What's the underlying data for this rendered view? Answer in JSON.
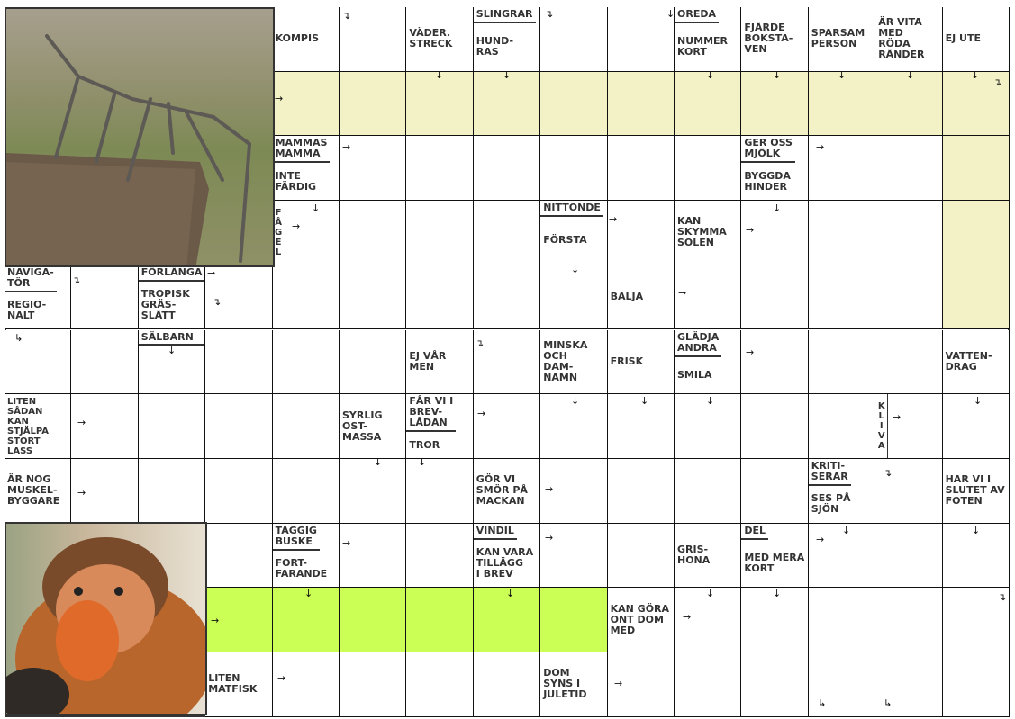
{
  "colors": {
    "highlight_yellow": "#f2f2c6",
    "highlight_green": "#ccff55",
    "grid": "#111111",
    "text": "#333333"
  },
  "photos": {
    "top": "stick-insect-photo",
    "bottom": "proboscis-monkey-photo"
  },
  "clues": [
    [
      "KOMPIS"
    ],
    [
      "VÄDER.\nSTRECK"
    ],
    [
      "SLINGRAR",
      "HUND-\nRAS"
    ],
    [
      "OREDA",
      "NUMMER\nKORT"
    ],
    [
      "FJÄRDE\nBOKSTA-\nVEN"
    ],
    [
      "SPARSAM\nPERSON"
    ],
    [
      "ÄR VITA\nMED\nRÖDA\nRÄNDER"
    ],
    [
      "EJ UTE"
    ],
    [
      "MAMMAS\nMAMMA",
      "INTE\nFÄRDIG"
    ],
    [
      "GER OSS\nMJÖLK",
      "BYGGDA\nHINDER"
    ],
    [
      "F\nÅ\nG\nE\nL"
    ],
    [
      "NITTONDE",
      "FÖRSTA"
    ],
    [
      "KAN\nSKYMMA\nSOLEN"
    ],
    [
      "NAVIGA-\nTÖR",
      "REGIO-\nNALT"
    ],
    [
      "FÖRLÄNGA",
      "TROPISK\nGRÄS-\nSLÄTT"
    ],
    [
      "BALJA"
    ],
    [
      "SÄLBARN"
    ],
    [
      "EJ VÅR\nMEN"
    ],
    [
      "MINSKA\nOCH\nDAM-\nNAMN"
    ],
    [
      "FRISK"
    ],
    [
      "GLÄDJA\nANDRA",
      "SMILA"
    ],
    [
      "VATTEN-\nDRAG"
    ],
    [
      "LITEN\nSÅDAN\nKAN\nSTJÄLPA\nSTORT\nLASS"
    ],
    [
      "SYRLIG\nOST-\nMASSA"
    ],
    [
      "FÅR VI I\nBREV-\nLÅDAN",
      "TROR"
    ],
    [
      "K\nL\nI\nV\nA"
    ],
    [
      "ÄR NOG\nMUSKEL-\nBYGGARE"
    ],
    [
      "GÖR VI\nSMÖR PÅ\nMACKAN"
    ],
    [
      "KRITI-\nSERAR",
      "SES PÅ\nSJÖN"
    ],
    [
      "HAR VI I\nSLUTET AV\nFOTEN"
    ],
    [
      "TAGGIG\nBUSKE",
      "FORT-\nFARANDE"
    ],
    [
      "VINDIL",
      "KAN VARA\nTILLÄGG\nI BREV"
    ],
    [
      "GRIS-\nHONA"
    ],
    [
      "DEL",
      "MED MERA\nKORT"
    ],
    [
      "KAN GÖRA\nONT DOM\nMED"
    ],
    [
      "LITEN\nMATFISK"
    ],
    [
      "DOM\nSYNS I\nJULETID"
    ]
  ]
}
